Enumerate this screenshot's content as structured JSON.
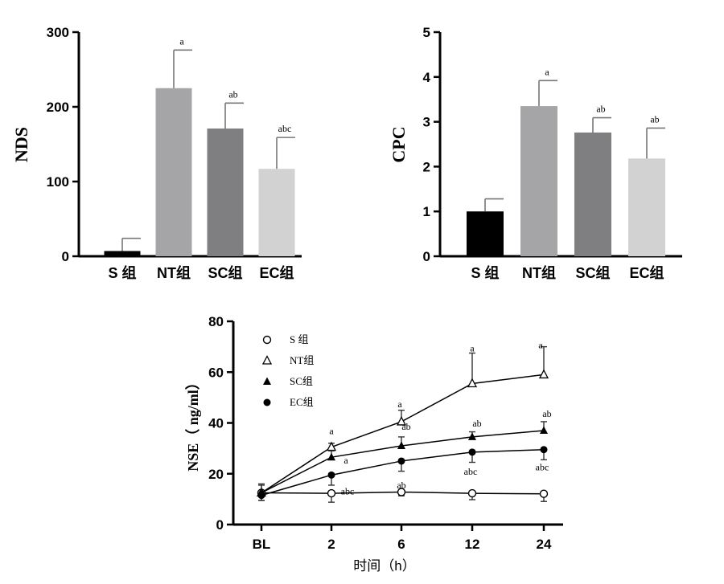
{
  "chart_data": [
    {
      "type": "bar",
      "ylabel": "NDS",
      "ylim": [
        0,
        300
      ],
      "yticks": [
        "0",
        "100",
        "200",
        "300"
      ],
      "categories": [
        "S 组",
        "NT组",
        "SC组",
        "EC组"
      ],
      "values": [
        7,
        225,
        171,
        117
      ],
      "errors": [
        17,
        51,
        34,
        42
      ],
      "annotations": [
        "",
        "a",
        "ab",
        "abc"
      ],
      "colors": [
        "#000000",
        "#a5a5a8",
        "#7f7f82",
        "#d2d2d2"
      ]
    },
    {
      "type": "bar",
      "ylabel": "CPC",
      "ylim": [
        0,
        5
      ],
      "yticks": [
        "0",
        "1",
        "2",
        "3",
        "4",
        "5"
      ],
      "categories": [
        "S 组",
        "NT组",
        "SC组",
        "EC组"
      ],
      "values": [
        1.0,
        3.35,
        2.76,
        2.18
      ],
      "errors": [
        0.28,
        0.57,
        0.33,
        0.68
      ],
      "annotations": [
        "",
        "a",
        "ab",
        "ab"
      ],
      "colors": [
        "#000000",
        "#a5a5a8",
        "#7f7f82",
        "#d2d2d2"
      ]
    },
    {
      "type": "line",
      "ylabel": "NSE（ ng/ml）",
      "xlabel": "时间（h）",
      "ylim": [
        0,
        80
      ],
      "yticks": [
        "0",
        "20",
        "40",
        "60",
        "80"
      ],
      "x": [
        "BL",
        "2",
        "6",
        "12",
        "24"
      ],
      "series": [
        {
          "name": "S 组",
          "marker": "open-circle",
          "values": [
            12.5,
            12.3,
            12.8,
            12.3,
            12.1
          ],
          "errors": [
            3,
            3.5,
            1.5,
            2.5,
            3
          ],
          "err_dir": "down",
          "annotations": [
            "",
            "",
            "",
            "",
            ""
          ]
        },
        {
          "name": "NT组",
          "marker": "open-triangle",
          "values": [
            12.5,
            30.5,
            40.5,
            55.5,
            59.0
          ],
          "errors": [
            3.5,
            1.5,
            4.5,
            12,
            11
          ],
          "err_dir": "up",
          "annotations": [
            "",
            "a",
            "a",
            "a",
            "a"
          ]
        },
        {
          "name": "SC组",
          "marker": "filled-triangle",
          "values": [
            12.5,
            26.5,
            31.0,
            34.5,
            37.0
          ],
          "errors": [
            3,
            2.5,
            3.5,
            2,
            3.5
          ],
          "err_dir": "up",
          "annotations": [
            "",
            "a",
            "ab",
            "ab",
            "ab"
          ]
        },
        {
          "name": "EC组",
          "marker": "filled-circle",
          "values": [
            11.5,
            19.5,
            25.0,
            28.5,
            29.5
          ],
          "errors": [
            2,
            4,
            4,
            4,
            4
          ],
          "err_dir": "down",
          "annotations": [
            "",
            "abc",
            "ab",
            "abc",
            "abc"
          ]
        }
      ],
      "legend": [
        "S 组",
        "NT组",
        "SC组",
        "EC组"
      ],
      "legend_position": "top-left"
    }
  ]
}
